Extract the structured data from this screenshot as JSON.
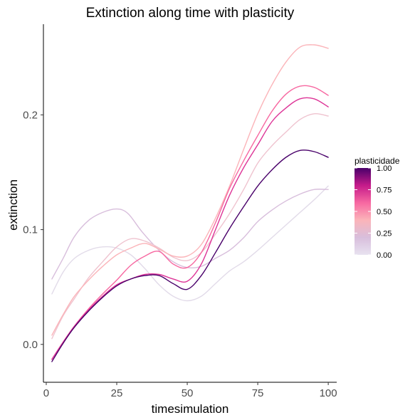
{
  "chart_data": {
    "type": "line",
    "title": "Extinction along time with plasticity",
    "xlabel": "timesimulation",
    "ylabel": "extinction",
    "xlim": [
      -1,
      103
    ],
    "ylim": [
      -0.033,
      0.279
    ],
    "x_ticks": [
      0,
      25,
      50,
      75,
      100
    ],
    "x_tick_labels": [
      "0",
      "25",
      "50",
      "75",
      "100"
    ],
    "y_ticks": [
      0.0,
      0.1,
      0.2
    ],
    "y_tick_labels": [
      "0.0",
      "0.1",
      "0.2"
    ],
    "grid": false,
    "legend": {
      "title": "plasticidade",
      "placement": "right",
      "type": "colorbar",
      "range": [
        0,
        1
      ],
      "ticks": [
        0.0,
        0.25,
        0.5,
        0.75,
        1.0
      ],
      "tick_labels": [
        "0.00",
        "0.25",
        "0.50",
        "0.75",
        "1.00"
      ],
      "colors": [
        "#e8e2f0",
        "#d8bedc",
        "#fbb4b9",
        "#f768a1",
        "#c51b8a",
        "#49006a"
      ]
    },
    "series": [
      {
        "plasticity": 0.0,
        "color": "#e2dbe9",
        "points": [
          [
            2,
            0.044
          ],
          [
            6,
            0.063
          ],
          [
            10,
            0.075
          ],
          [
            15,
            0.082
          ],
          [
            20,
            0.085
          ],
          [
            25,
            0.084
          ],
          [
            30,
            0.078
          ],
          [
            35,
            0.066
          ],
          [
            40,
            0.052
          ],
          [
            45,
            0.042
          ],
          [
            50,
            0.038
          ],
          [
            55,
            0.042
          ],
          [
            60,
            0.053
          ],
          [
            65,
            0.064
          ],
          [
            70,
            0.072
          ],
          [
            75,
            0.082
          ],
          [
            80,
            0.093
          ],
          [
            85,
            0.104
          ],
          [
            90,
            0.115
          ],
          [
            95,
            0.126
          ],
          [
            100,
            0.138
          ]
        ]
      },
      {
        "plasticity": 0.1,
        "color": "#d8bedc",
        "points": [
          [
            2,
            0.057
          ],
          [
            6,
            0.075
          ],
          [
            10,
            0.094
          ],
          [
            15,
            0.108
          ],
          [
            20,
            0.115
          ],
          [
            25,
            0.118
          ],
          [
            29,
            0.114
          ],
          [
            34,
            0.098
          ],
          [
            40,
            0.082
          ],
          [
            45,
            0.072
          ],
          [
            50,
            0.067
          ],
          [
            55,
            0.068
          ],
          [
            60,
            0.075
          ],
          [
            65,
            0.082
          ],
          [
            70,
            0.093
          ],
          [
            75,
            0.107
          ],
          [
            80,
            0.117
          ],
          [
            85,
            0.125
          ],
          [
            90,
            0.131
          ],
          [
            95,
            0.135
          ],
          [
            100,
            0.135
          ]
        ]
      },
      {
        "plasticity": 0.2,
        "color": "#efc3cf",
        "points": [
          [
            2,
            0.005
          ],
          [
            6,
            0.025
          ],
          [
            10,
            0.04
          ],
          [
            15,
            0.058
          ],
          [
            20,
            0.072
          ],
          [
            25,
            0.085
          ],
          [
            30,
            0.092
          ],
          [
            35,
            0.09
          ],
          [
            40,
            0.084
          ],
          [
            45,
            0.076
          ],
          [
            50,
            0.073
          ],
          [
            55,
            0.08
          ],
          [
            60,
            0.096
          ],
          [
            65,
            0.114
          ],
          [
            70,
            0.135
          ],
          [
            75,
            0.158
          ],
          [
            80,
            0.173
          ],
          [
            85,
            0.185
          ],
          [
            90,
            0.196
          ],
          [
            95,
            0.201
          ],
          [
            100,
            0.199
          ]
        ]
      },
      {
        "plasticity": 0.3,
        "color": "#fbb4b9",
        "points": [
          [
            2,
            0.008
          ],
          [
            6,
            0.026
          ],
          [
            10,
            0.042
          ],
          [
            15,
            0.056
          ],
          [
            20,
            0.068
          ],
          [
            25,
            0.078
          ],
          [
            30,
            0.084
          ],
          [
            35,
            0.088
          ],
          [
            40,
            0.083
          ],
          [
            45,
            0.077
          ],
          [
            50,
            0.077
          ],
          [
            55,
            0.087
          ],
          [
            60,
            0.11
          ],
          [
            65,
            0.138
          ],
          [
            70,
            0.17
          ],
          [
            75,
            0.201
          ],
          [
            80,
            0.226
          ],
          [
            85,
            0.246
          ],
          [
            90,
            0.259
          ],
          [
            95,
            0.261
          ],
          [
            100,
            0.258
          ]
        ]
      },
      {
        "plasticity": 0.5,
        "color": "#f768a1",
        "points": [
          [
            2,
            -0.013
          ],
          [
            6,
            0.002
          ],
          [
            10,
            0.016
          ],
          [
            15,
            0.031
          ],
          [
            20,
            0.044
          ],
          [
            25,
            0.056
          ],
          [
            30,
            0.069
          ],
          [
            35,
            0.077
          ],
          [
            40,
            0.081
          ],
          [
            45,
            0.07
          ],
          [
            50,
            0.067
          ],
          [
            55,
            0.08
          ],
          [
            60,
            0.106
          ],
          [
            65,
            0.136
          ],
          [
            70,
            0.16
          ],
          [
            75,
            0.182
          ],
          [
            80,
            0.203
          ],
          [
            85,
            0.218
          ],
          [
            90,
            0.225
          ],
          [
            95,
            0.224
          ],
          [
            100,
            0.217
          ]
        ]
      },
      {
        "plasticity": 0.7,
        "color": "#dd3497",
        "points": [
          [
            2,
            -0.013
          ],
          [
            6,
            0.002
          ],
          [
            10,
            0.016
          ],
          [
            15,
            0.03
          ],
          [
            20,
            0.042
          ],
          [
            25,
            0.052
          ],
          [
            30,
            0.057
          ],
          [
            35,
            0.061
          ],
          [
            40,
            0.061
          ],
          [
            45,
            0.057
          ],
          [
            50,
            0.055
          ],
          [
            55,
            0.07
          ],
          [
            60,
            0.1
          ],
          [
            65,
            0.13
          ],
          [
            70,
            0.154
          ],
          [
            75,
            0.174
          ],
          [
            80,
            0.194
          ],
          [
            85,
            0.206
          ],
          [
            90,
            0.214
          ],
          [
            95,
            0.214
          ],
          [
            100,
            0.207
          ]
        ]
      },
      {
        "plasticity": 1.0,
        "color": "#49006a",
        "points": [
          [
            2,
            -0.015
          ],
          [
            6,
            0.001
          ],
          [
            10,
            0.015
          ],
          [
            15,
            0.029
          ],
          [
            20,
            0.041
          ],
          [
            25,
            0.051
          ],
          [
            30,
            0.057
          ],
          [
            35,
            0.06
          ],
          [
            40,
            0.06
          ],
          [
            45,
            0.053
          ],
          [
            50,
            0.048
          ],
          [
            55,
            0.06
          ],
          [
            60,
            0.08
          ],
          [
            65,
            0.101
          ],
          [
            70,
            0.12
          ],
          [
            75,
            0.138
          ],
          [
            80,
            0.152
          ],
          [
            85,
            0.163
          ],
          [
            90,
            0.169
          ],
          [
            95,
            0.168
          ],
          [
            100,
            0.163
          ]
        ]
      }
    ]
  }
}
